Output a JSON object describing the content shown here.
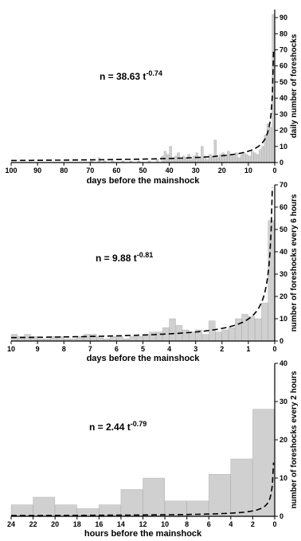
{
  "chart_data": [
    {
      "type": "bar",
      "xlabel": "days before the mainshock",
      "ylabel": "daily number of foreshocks",
      "xlim": [
        100,
        0
      ],
      "ylim": [
        0,
        95
      ],
      "xticks": [
        "100",
        "90",
        "80",
        "70",
        "60",
        "50",
        "40",
        "30",
        "20",
        "10",
        "0"
      ],
      "yticks": [
        "0",
        "10",
        "20",
        "30",
        "40",
        "50",
        "60",
        "70",
        "80",
        "90"
      ],
      "formula": {
        "prefix": "n = 38.63 t",
        "exponent": "-0.74"
      },
      "fit": {
        "a": 38.63,
        "b": -0.74
      },
      "bin_width": 1,
      "bins": [
        {
          "x": 70,
          "value": 1
        },
        {
          "x": 67,
          "value": 3
        },
        {
          "x": 65,
          "value": 1
        },
        {
          "x": 62,
          "value": 1
        },
        {
          "x": 58,
          "value": 1
        },
        {
          "x": 55,
          "value": 1
        },
        {
          "x": 52,
          "value": 1
        },
        {
          "x": 48,
          "value": 1
        },
        {
          "x": 45,
          "value": 2
        },
        {
          "x": 43,
          "value": 4
        },
        {
          "x": 42,
          "value": 7
        },
        {
          "x": 41,
          "value": 5
        },
        {
          "x": 40,
          "value": 10
        },
        {
          "x": 39,
          "value": 3
        },
        {
          "x": 38,
          "value": 4
        },
        {
          "x": 37,
          "value": 6
        },
        {
          "x": 36,
          "value": 2
        },
        {
          "x": 35,
          "value": 4
        },
        {
          "x": 34,
          "value": 3
        },
        {
          "x": 33,
          "value": 5
        },
        {
          "x": 32,
          "value": 2
        },
        {
          "x": 31,
          "value": 4
        },
        {
          "x": 30,
          "value": 6
        },
        {
          "x": 29,
          "value": 3
        },
        {
          "x": 28,
          "value": 10
        },
        {
          "x": 27,
          "value": 4
        },
        {
          "x": 26,
          "value": 2
        },
        {
          "x": 25,
          "value": 5
        },
        {
          "x": 24,
          "value": 4
        },
        {
          "x": 23,
          "value": 14
        },
        {
          "x": 22,
          "value": 3
        },
        {
          "x": 21,
          "value": 5
        },
        {
          "x": 20,
          "value": 6
        },
        {
          "x": 19,
          "value": 4
        },
        {
          "x": 18,
          "value": 7
        },
        {
          "x": 17,
          "value": 5
        },
        {
          "x": 16,
          "value": 4
        },
        {
          "x": 15,
          "value": 6
        },
        {
          "x": 14,
          "value": 3
        },
        {
          "x": 13,
          "value": 5
        },
        {
          "x": 12,
          "value": 6
        },
        {
          "x": 11,
          "value": 5
        },
        {
          "x": 10,
          "value": 4
        },
        {
          "x": 9,
          "value": 7
        },
        {
          "x": 8,
          "value": 6
        },
        {
          "x": 7,
          "value": 5
        },
        {
          "x": 6,
          "value": 8
        },
        {
          "x": 5,
          "value": 10
        },
        {
          "x": 4,
          "value": 17
        },
        {
          "x": 3,
          "value": 24
        },
        {
          "x": 2,
          "value": 22
        },
        {
          "x": 1,
          "value": 92
        }
      ]
    },
    {
      "type": "bar",
      "xlabel": "days before the mainshock",
      "ylabel": "number of foreshocks every 6 hours",
      "xlim": [
        10,
        0
      ],
      "ylim": [
        0,
        70
      ],
      "xticks": [
        "10",
        "9",
        "8",
        "7",
        "6",
        "5",
        "4",
        "3",
        "2",
        "1",
        "0"
      ],
      "yticks": [
        "0",
        "10",
        "20",
        "30",
        "40",
        "50",
        "60",
        "70"
      ],
      "formula": {
        "prefix": "n = 9.88 t",
        "exponent": "-0.81"
      },
      "fit": {
        "a": 9.88,
        "b": -0.81
      },
      "bin_width": 0.25,
      "bins": [
        {
          "x": 10.0,
          "value": 3
        },
        {
          "x": 9.75,
          "value": 2
        },
        {
          "x": 9.5,
          "value": 3
        },
        {
          "x": 9.25,
          "value": 2
        },
        {
          "x": 9.0,
          "value": 1
        },
        {
          "x": 8.75,
          "value": 1
        },
        {
          "x": 8.5,
          "value": 2
        },
        {
          "x": 8.25,
          "value": 2
        },
        {
          "x": 8.0,
          "value": 1
        },
        {
          "x": 7.75,
          "value": 1
        },
        {
          "x": 7.5,
          "value": 2
        },
        {
          "x": 7.25,
          "value": 3
        },
        {
          "x": 7.0,
          "value": 3
        },
        {
          "x": 6.75,
          "value": 2
        },
        {
          "x": 6.5,
          "value": 1
        },
        {
          "x": 6.25,
          "value": 2
        },
        {
          "x": 6.0,
          "value": 2
        },
        {
          "x": 5.75,
          "value": 1
        },
        {
          "x": 5.5,
          "value": 2
        },
        {
          "x": 5.25,
          "value": 2
        },
        {
          "x": 5.0,
          "value": 3
        },
        {
          "x": 4.75,
          "value": 4
        },
        {
          "x": 4.5,
          "value": 4
        },
        {
          "x": 4.25,
          "value": 6
        },
        {
          "x": 4.0,
          "value": 10
        },
        {
          "x": 3.75,
          "value": 7
        },
        {
          "x": 3.5,
          "value": 5
        },
        {
          "x": 3.25,
          "value": 4
        },
        {
          "x": 3.0,
          "value": 5
        },
        {
          "x": 2.75,
          "value": 3
        },
        {
          "x": 2.5,
          "value": 9
        },
        {
          "x": 2.25,
          "value": 4
        },
        {
          "x": 2.0,
          "value": 5
        },
        {
          "x": 1.75,
          "value": 6
        },
        {
          "x": 1.5,
          "value": 10
        },
        {
          "x": 1.25,
          "value": 12
        },
        {
          "x": 1.0,
          "value": 11
        },
        {
          "x": 0.75,
          "value": 10
        },
        {
          "x": 0.5,
          "value": 17
        },
        {
          "x": 0.25,
          "value": 54
        }
      ]
    },
    {
      "type": "bar",
      "xlabel": "hours before the mainshock",
      "ylabel": "number of foreshocks every 2 hours",
      "xlim": [
        24,
        0
      ],
      "ylim": [
        0,
        40
      ],
      "xticks": [
        "24",
        "22",
        "20",
        "18",
        "16",
        "14",
        "12",
        "10",
        "8",
        "6",
        "4",
        "2",
        "0"
      ],
      "yticks": [
        "0",
        "10",
        "20",
        "30",
        "40"
      ],
      "formula": {
        "prefix": "n = 2.44 t",
        "exponent": "-0.79"
      },
      "fit": {
        "a": 2.44,
        "b": -0.79
      },
      "bin_width": 2,
      "bins": [
        {
          "x": 24,
          "value": 3
        },
        {
          "x": 22,
          "value": 5
        },
        {
          "x": 20,
          "value": 3
        },
        {
          "x": 18,
          "value": 2
        },
        {
          "x": 16,
          "value": 3
        },
        {
          "x": 14,
          "value": 7
        },
        {
          "x": 12,
          "value": 10
        },
        {
          "x": 10,
          "value": 4
        },
        {
          "x": 8,
          "value": 4
        },
        {
          "x": 6,
          "value": 11
        },
        {
          "x": 4,
          "value": 15
        },
        {
          "x": 2,
          "value": 28
        }
      ]
    }
  ]
}
